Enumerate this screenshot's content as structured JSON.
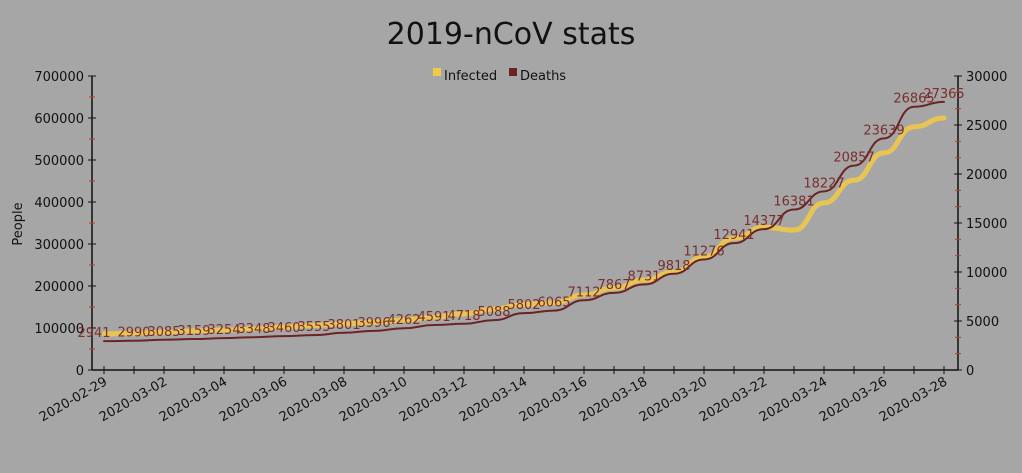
{
  "chart_data": {
    "type": "line",
    "title": "2019-nCoV stats",
    "ylabel": "People",
    "ylabel_right": "",
    "legend": {
      "placement": "top-center",
      "entries": [
        "Infected",
        "Deaths"
      ]
    },
    "ylim": [
      0,
      700000
    ],
    "ylim_right": [
      0,
      30000
    ],
    "yticks": [
      "0",
      "100000",
      "200000",
      "300000",
      "400000",
      "500000",
      "600000",
      "700000"
    ],
    "yticks_right": [
      "0",
      "5000",
      "10000",
      "15000",
      "20000",
      "25000",
      "30000"
    ],
    "x": [
      "2020-02-29",
      "2020-03-01",
      "2020-03-02",
      "2020-03-03",
      "2020-03-04",
      "2020-03-05",
      "2020-03-06",
      "2020-03-07",
      "2020-03-08",
      "2020-03-09",
      "2020-03-10",
      "2020-03-11",
      "2020-03-12",
      "2020-03-13",
      "2020-03-14",
      "2020-03-15",
      "2020-03-16",
      "2020-03-17",
      "2020-03-18",
      "2020-03-19",
      "2020-03-20",
      "2020-03-21",
      "2020-03-22",
      "2020-03-23",
      "2020-03-24",
      "2020-03-25",
      "2020-03-26",
      "2020-03-27",
      "2020-03-28"
    ],
    "xtick_labels": [
      "2020-02-29",
      "2020-03-02",
      "2020-03-04",
      "2020-03-06",
      "2020-03-08",
      "2020-03-10",
      "2020-03-12",
      "2020-03-14",
      "2020-03-16",
      "2020-03-18",
      "2020-03-20",
      "2020-03-22",
      "2020-03-24",
      "2020-03-26",
      "2020-03-28"
    ],
    "grid": false,
    "series": [
      {
        "name": "Infected",
        "axis": "left",
        "color": "#f0c94a",
        "values": [
          86000,
          88000,
          90000,
          93000,
          95000,
          98000,
          102000,
          106000,
          110000,
          114000,
          119000,
          126000,
          134000,
          145000,
          156000,
          160000,
          179000,
          195000,
          214000,
          233000,
          269000,
          314000,
          340000,
          333000,
          398000,
          452000,
          517000,
          579000,
          600000
        ]
      },
      {
        "name": "Deaths",
        "axis": "right",
        "color": "#6b2424",
        "data_labels": true,
        "values": [
          2941,
          2990,
          3085,
          3159,
          3254,
          3348,
          3460,
          3555,
          3801,
          3996,
          4262,
          4591,
          4718,
          5088,
          5802,
          6065,
          7112,
          7867,
          8731,
          9818,
          11276,
          12941,
          14377,
          16381,
          18227,
          20857,
          23639,
          26865,
          27365
        ]
      }
    ]
  }
}
